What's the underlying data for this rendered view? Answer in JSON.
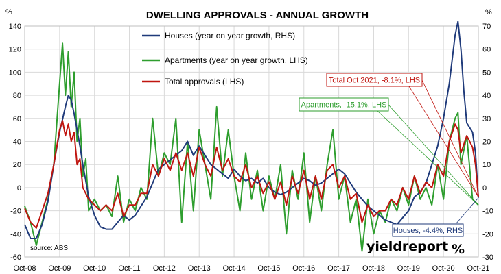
{
  "chart_data": {
    "type": "line",
    "title": "DWELLING APPROVALS - ANNUAL GROWTH",
    "left_axis_unit": "%",
    "right_axis_unit": "%",
    "left_ylim": [
      -60,
      140
    ],
    "right_ylim": [
      -30,
      70
    ],
    "left_ticks": [
      "140",
      "120",
      "100",
      "80",
      "60",
      "40",
      "20",
      "0",
      "-20",
      "-40",
      "-60"
    ],
    "right_ticks": [
      "70",
      "60",
      "50",
      "40",
      "30",
      "20",
      "10",
      "0",
      "-10",
      "-20",
      "-30"
    ],
    "x_labels": [
      "Oct-08",
      "Oct-09",
      "Oct-10",
      "Oct-11",
      "Oct-12",
      "Oct-13",
      "Oct-14",
      "Oct-15",
      "Oct-16",
      "Oct-17",
      "Oct-18",
      "Oct-19",
      "Oct-20",
      "Oct-21"
    ],
    "x_range_months": [
      "Oct-08",
      "Oct-21"
    ],
    "grid": true,
    "source": "source: ABS",
    "series": [
      {
        "name": "Houses (year on year growth, RHS)",
        "axis": "right",
        "color": "#1f3a7a",
        "points": [
          [
            "Oct-08",
            -16
          ],
          [
            "Dec-08",
            -22
          ],
          [
            "Feb-09",
            -22
          ],
          [
            "Apr-09",
            -16
          ],
          [
            "Jun-09",
            -6
          ],
          [
            "Aug-09",
            10
          ],
          [
            "Oct-09",
            24
          ],
          [
            "Dec-09",
            35
          ],
          [
            "Jan-10",
            40
          ],
          [
            "Feb-10",
            38
          ],
          [
            "Mar-10",
            32
          ],
          [
            "Apr-10",
            25
          ],
          [
            "May-10",
            18
          ],
          [
            "Jun-10",
            10
          ],
          [
            "Aug-10",
            -4
          ],
          [
            "Oct-10",
            -12
          ],
          [
            "Dec-10",
            -17
          ],
          [
            "Feb-11",
            -18
          ],
          [
            "Apr-11",
            -18
          ],
          [
            "Jun-11",
            -15
          ],
          [
            "Aug-11",
            -12
          ],
          [
            "Oct-11",
            -14
          ],
          [
            "Dec-11",
            -12
          ],
          [
            "Feb-12",
            -8
          ],
          [
            "Apr-12",
            -4
          ],
          [
            "Jun-12",
            2
          ],
          [
            "Aug-12",
            8
          ],
          [
            "Oct-12",
            10
          ],
          [
            "Dec-12",
            12
          ],
          [
            "Feb-13",
            14
          ],
          [
            "Apr-13",
            16
          ],
          [
            "Jun-13",
            20
          ],
          [
            "Aug-13",
            14
          ],
          [
            "Oct-13",
            18
          ],
          [
            "Dec-13",
            14
          ],
          [
            "Feb-14",
            10
          ],
          [
            "Apr-14",
            8
          ],
          [
            "Jun-14",
            6
          ],
          [
            "Aug-14",
            4
          ],
          [
            "Oct-14",
            8
          ],
          [
            "Dec-14",
            5
          ],
          [
            "Feb-15",
            3
          ],
          [
            "Apr-15",
            4
          ],
          [
            "Jun-15",
            2
          ],
          [
            "Aug-15",
            4
          ],
          [
            "Oct-15",
            0
          ],
          [
            "Dec-15",
            -2
          ],
          [
            "Feb-16",
            -3
          ],
          [
            "Apr-16",
            -2
          ],
          [
            "Jun-16",
            0
          ],
          [
            "Aug-16",
            2
          ],
          [
            "Oct-16",
            4
          ],
          [
            "Dec-16",
            3
          ],
          [
            "Feb-17",
            1
          ],
          [
            "Apr-17",
            2
          ],
          [
            "Jun-17",
            4
          ],
          [
            "Aug-17",
            6
          ],
          [
            "Oct-17",
            8
          ],
          [
            "Dec-17",
            6
          ],
          [
            "Feb-18",
            2
          ],
          [
            "Apr-18",
            -2
          ],
          [
            "Jun-18",
            -5
          ],
          [
            "Aug-18",
            -8
          ],
          [
            "Oct-18",
            -10
          ],
          [
            "Dec-18",
            -12
          ],
          [
            "Feb-19",
            -14
          ],
          [
            "Apr-19",
            -15
          ],
          [
            "Jun-19",
            -16
          ],
          [
            "Aug-19",
            -13
          ],
          [
            "Oct-19",
            -10
          ],
          [
            "Dec-19",
            -4
          ],
          [
            "Feb-20",
            -2
          ],
          [
            "Apr-20",
            2
          ],
          [
            "Jun-20",
            10
          ],
          [
            "Aug-20",
            18
          ],
          [
            "Oct-20",
            30
          ],
          [
            "Dec-20",
            45
          ],
          [
            "Feb-21",
            66
          ],
          [
            "Mar-21",
            72
          ],
          [
            "Apr-21",
            60
          ],
          [
            "May-21",
            42
          ],
          [
            "Jun-21",
            28
          ],
          [
            "Jul-21",
            26
          ],
          [
            "Aug-21",
            24
          ],
          [
            "Sep-21",
            15
          ],
          [
            "Oct-21",
            -4.4
          ]
        ]
      },
      {
        "name": "Apartments (year on year growth, LHS)",
        "axis": "left",
        "color": "#2e9e2e",
        "points": [
          [
            "Oct-08",
            -16
          ],
          [
            "Dec-08",
            -30
          ],
          [
            "Feb-09",
            -50
          ],
          [
            "Apr-09",
            -30
          ],
          [
            "Jun-09",
            -10
          ],
          [
            "Aug-09",
            20
          ],
          [
            "Oct-09",
            90
          ],
          [
            "Nov-09",
            125
          ],
          [
            "Dec-09",
            80
          ],
          [
            "Jan-10",
            118
          ],
          [
            "Feb-10",
            70
          ],
          [
            "Mar-10",
            100
          ],
          [
            "Apr-10",
            40
          ],
          [
            "May-10",
            60
          ],
          [
            "Jun-10",
            10
          ],
          [
            "Jul-10",
            25
          ],
          [
            "Aug-10",
            -20
          ],
          [
            "Oct-10",
            -10
          ],
          [
            "Dec-10",
            -20
          ],
          [
            "Feb-11",
            -15
          ],
          [
            "Apr-11",
            -25
          ],
          [
            "Jun-11",
            10
          ],
          [
            "Aug-11",
            -30
          ],
          [
            "Oct-11",
            -10
          ],
          [
            "Dec-11",
            -20
          ],
          [
            "Feb-12",
            0
          ],
          [
            "Apr-12",
            -10
          ],
          [
            "Jun-12",
            60
          ],
          [
            "Aug-12",
            10
          ],
          [
            "Oct-12",
            30
          ],
          [
            "Dec-12",
            20
          ],
          [
            "Feb-13",
            60
          ],
          [
            "Apr-13",
            -30
          ],
          [
            "Jun-13",
            40
          ],
          [
            "Aug-13",
            -20
          ],
          [
            "Oct-13",
            50
          ],
          [
            "Dec-13",
            20
          ],
          [
            "Feb-14",
            -10
          ],
          [
            "Apr-14",
            70
          ],
          [
            "Jun-14",
            10
          ],
          [
            "Aug-14",
            50
          ],
          [
            "Oct-14",
            10
          ],
          [
            "Dec-14",
            -20
          ],
          [
            "Feb-15",
            30
          ],
          [
            "Apr-15",
            -10
          ],
          [
            "Jun-15",
            15
          ],
          [
            "Aug-15",
            -20
          ],
          [
            "Oct-15",
            10
          ],
          [
            "Dec-15",
            -10
          ],
          [
            "Feb-16",
            20
          ],
          [
            "Apr-16",
            -40
          ],
          [
            "Jun-16",
            15
          ],
          [
            "Aug-16",
            -10
          ],
          [
            "Oct-16",
            30
          ],
          [
            "Dec-16",
            -30
          ],
          [
            "Feb-17",
            10
          ],
          [
            "Apr-17",
            -20
          ],
          [
            "Jun-17",
            20
          ],
          [
            "Aug-17",
            50
          ],
          [
            "Oct-17",
            -10
          ],
          [
            "Dec-17",
            10
          ],
          [
            "Feb-18",
            -30
          ],
          [
            "Apr-18",
            -10
          ],
          [
            "Jun-18",
            -55
          ],
          [
            "Aug-18",
            -10
          ],
          [
            "Oct-18",
            -40
          ],
          [
            "Dec-18",
            -20
          ],
          [
            "Feb-19",
            -30
          ],
          [
            "Apr-19",
            -10
          ],
          [
            "Jun-19",
            -20
          ],
          [
            "Aug-19",
            0
          ],
          [
            "Oct-19",
            -15
          ],
          [
            "Dec-19",
            10
          ],
          [
            "Feb-20",
            -10
          ],
          [
            "Apr-20",
            0
          ],
          [
            "Jun-20",
            -15
          ],
          [
            "Aug-20",
            20
          ],
          [
            "Oct-20",
            -10
          ],
          [
            "Dec-20",
            40
          ],
          [
            "Feb-21",
            60
          ],
          [
            "Mar-21",
            65
          ],
          [
            "Apr-21",
            20
          ],
          [
            "Jun-21",
            45
          ],
          [
            "Aug-21",
            -10
          ],
          [
            "Oct-21",
            -15.1
          ]
        ]
      },
      {
        "name": "Total approvals (LHS)",
        "axis": "left",
        "color": "#c0150f",
        "points": [
          [
            "Oct-08",
            -18
          ],
          [
            "Dec-08",
            -30
          ],
          [
            "Feb-09",
            -35
          ],
          [
            "Apr-09",
            -20
          ],
          [
            "Jun-09",
            -5
          ],
          [
            "Aug-09",
            20
          ],
          [
            "Oct-09",
            50
          ],
          [
            "Nov-09",
            58
          ],
          [
            "Dec-09",
            45
          ],
          [
            "Jan-10",
            55
          ],
          [
            "Feb-10",
            40
          ],
          [
            "Mar-10",
            48
          ],
          [
            "Apr-10",
            20
          ],
          [
            "May-10",
            25
          ],
          [
            "Jun-10",
            0
          ],
          [
            "Aug-10",
            -10
          ],
          [
            "Oct-10",
            -15
          ],
          [
            "Dec-10",
            -20
          ],
          [
            "Feb-11",
            -15
          ],
          [
            "Apr-11",
            -20
          ],
          [
            "Jun-11",
            -5
          ],
          [
            "Aug-11",
            -25
          ],
          [
            "Oct-11",
            -15
          ],
          [
            "Dec-11",
            -15
          ],
          [
            "Feb-12",
            -5
          ],
          [
            "Apr-12",
            -5
          ],
          [
            "Jun-12",
            20
          ],
          [
            "Aug-12",
            10
          ],
          [
            "Oct-12",
            25
          ],
          [
            "Dec-12",
            15
          ],
          [
            "Feb-13",
            30
          ],
          [
            "Apr-13",
            15
          ],
          [
            "Jun-13",
            30
          ],
          [
            "Aug-13",
            10
          ],
          [
            "Oct-13",
            35
          ],
          [
            "Dec-13",
            20
          ],
          [
            "Feb-14",
            10
          ],
          [
            "Apr-14",
            35
          ],
          [
            "Jun-14",
            15
          ],
          [
            "Aug-14",
            25
          ],
          [
            "Oct-14",
            10
          ],
          [
            "Dec-14",
            5
          ],
          [
            "Feb-15",
            20
          ],
          [
            "Apr-15",
            0
          ],
          [
            "Jun-15",
            10
          ],
          [
            "Aug-15",
            -5
          ],
          [
            "Oct-15",
            5
          ],
          [
            "Dec-15",
            -10
          ],
          [
            "Feb-16",
            5
          ],
          [
            "Apr-16",
            -15
          ],
          [
            "Jun-16",
            10
          ],
          [
            "Aug-16",
            -5
          ],
          [
            "Oct-16",
            15
          ],
          [
            "Dec-16",
            -10
          ],
          [
            "Feb-17",
            10
          ],
          [
            "Apr-17",
            -10
          ],
          [
            "Jun-17",
            15
          ],
          [
            "Aug-17",
            20
          ],
          [
            "Oct-17",
            0
          ],
          [
            "Dec-17",
            10
          ],
          [
            "Feb-18",
            -10
          ],
          [
            "Apr-18",
            -5
          ],
          [
            "Jun-18",
            -30
          ],
          [
            "Aug-18",
            -15
          ],
          [
            "Oct-18",
            -25
          ],
          [
            "Dec-18",
            -20
          ],
          [
            "Feb-19",
            -20
          ],
          [
            "Apr-19",
            -10
          ],
          [
            "Jun-19",
            -15
          ],
          [
            "Aug-19",
            0
          ],
          [
            "Oct-19",
            -10
          ],
          [
            "Dec-19",
            10
          ],
          [
            "Feb-20",
            -5
          ],
          [
            "Apr-20",
            5
          ],
          [
            "Jun-20",
            0
          ],
          [
            "Aug-20",
            20
          ],
          [
            "Oct-20",
            10
          ],
          [
            "Dec-20",
            40
          ],
          [
            "Feb-21",
            55
          ],
          [
            "Mar-21",
            50
          ],
          [
            "Apr-21",
            30
          ],
          [
            "Jun-21",
            45
          ],
          [
            "Aug-21",
            35
          ],
          [
            "Sep-21",
            20
          ],
          [
            "Oct-21",
            -8.1
          ]
        ]
      }
    ],
    "annotations": [
      {
        "text": "Total Oct 2021, -8.1%, LHS",
        "color": "#c0150f",
        "series": 2
      },
      {
        "text": "Apartments, -15.1%, LHS",
        "color": "#2e9e2e",
        "series": 1
      },
      {
        "text": "Houses, -4.4%, RHS",
        "color": "#1f3a7a",
        "series": 0
      }
    ]
  },
  "brand": {
    "text": "yieldreport",
    "symbol": "%",
    "symbol_color": "#c0150f"
  }
}
